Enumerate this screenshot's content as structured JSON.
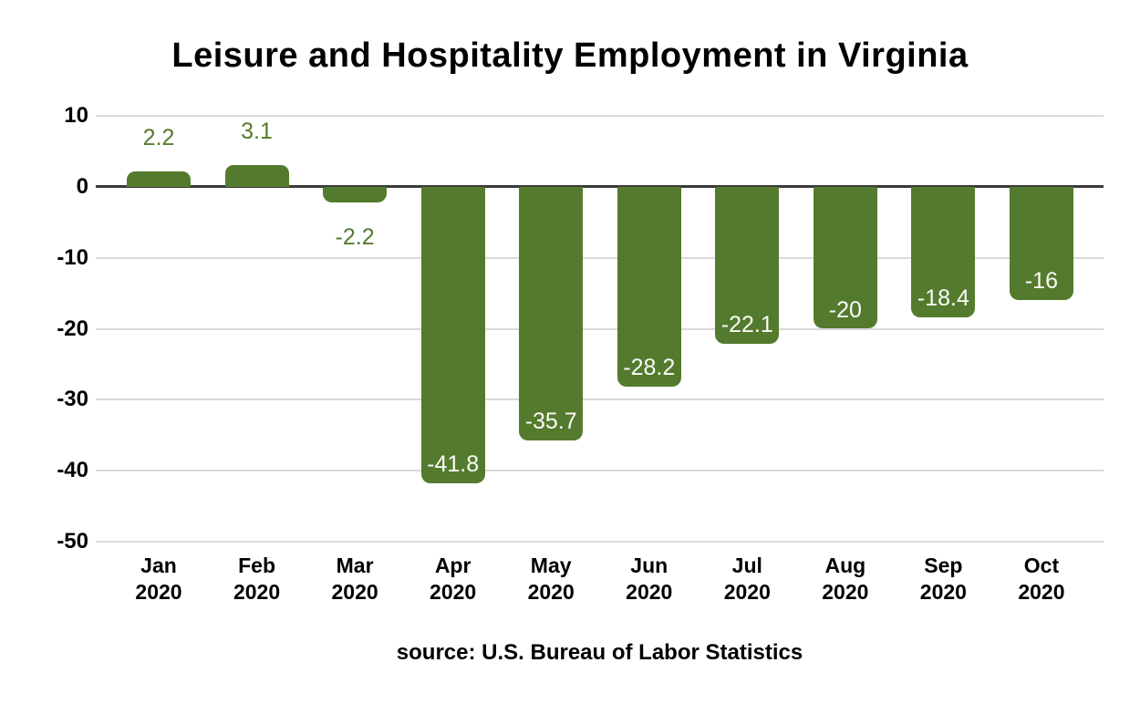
{
  "chart_data": {
    "type": "bar",
    "title": "Leisure and Hospitality Employment in Virginia",
    "source": "source: U.S. Bureau of Labor Statistics",
    "categories": [
      "Jan 2020",
      "Feb 2020",
      "Mar 2020",
      "Apr 2020",
      "May 2020",
      "Jun 2020",
      "Jul 2020",
      "Aug 2020",
      "Sep 2020",
      "Oct 2020"
    ],
    "values": [
      2.2,
      3.1,
      -2.2,
      -41.8,
      -35.7,
      -28.2,
      -22.1,
      -20,
      -18.4,
      -16
    ],
    "value_labels": [
      "2.2",
      "3.1",
      "-2.2",
      "-41.8",
      "-35.7",
      "-28.2",
      "-22.1",
      "-20",
      "-18.4",
      "-16"
    ],
    "xlabel": "",
    "ylabel": "",
    "ylim": [
      -50,
      10
    ],
    "yticks": [
      10,
      0,
      -10,
      -20,
      -30,
      -40,
      -50
    ],
    "ytick_labels": [
      "10",
      "0",
      "-10",
      "-20",
      "-30",
      "-40",
      "-50"
    ],
    "grid": true,
    "legend": false,
    "colors": {
      "bar": "#547b2d",
      "label_inside": "#fafaf7",
      "label_outside": "#547b2d",
      "gridline": "#d9d9d9",
      "zero_line": "#3a3a3a",
      "text": "#000000",
      "background": "#ffffff"
    }
  }
}
